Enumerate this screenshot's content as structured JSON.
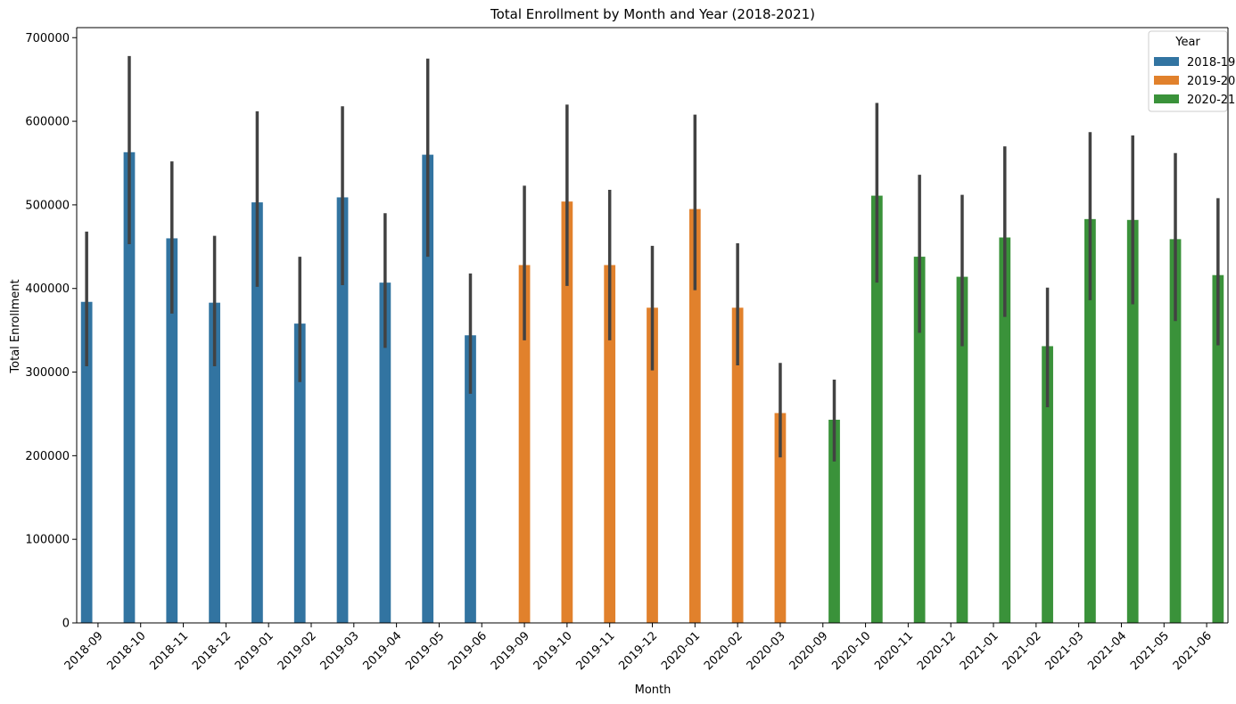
{
  "chart_data": {
    "type": "bar",
    "title": "Total Enrollment by Month and Year (2018-2021)",
    "xlabel": "Month",
    "ylabel": "Total Enrollment",
    "ylim": [
      0,
      712000
    ],
    "yticks": [
      0,
      100000,
      200000,
      300000,
      400000,
      500000,
      600000,
      700000
    ],
    "ytick_labels": [
      "0",
      "100000",
      "200000",
      "300000",
      "400000",
      "500000",
      "600000",
      "700000"
    ],
    "grid": false,
    "legend": {
      "title": "Year",
      "placement": "top-right"
    },
    "categories": [
      "2018-09",
      "2018-10",
      "2018-11",
      "2018-12",
      "2019-01",
      "2019-02",
      "2019-03",
      "2019-04",
      "2019-05",
      "2019-06",
      "2019-09",
      "2019-10",
      "2019-11",
      "2019-12",
      "2020-01",
      "2020-02",
      "2020-03",
      "2020-09",
      "2020-10",
      "2020-11",
      "2020-12",
      "2021-01",
      "2021-02",
      "2021-03",
      "2021-04",
      "2021-05",
      "2021-06"
    ],
    "series": [
      {
        "name": "2018-19",
        "color": "#3274a1",
        "values": [
          384000,
          563000,
          460000,
          383000,
          503000,
          358000,
          509000,
          407000,
          560000,
          344000,
          null,
          null,
          null,
          null,
          null,
          null,
          null,
          null,
          null,
          null,
          null,
          null,
          null,
          null,
          null,
          null,
          null
        ],
        "ci_low": [
          307000,
          453000,
          370000,
          307000,
          402000,
          288000,
          404000,
          329000,
          438000,
          274000,
          null,
          null,
          null,
          null,
          null,
          null,
          null,
          null,
          null,
          null,
          null,
          null,
          null,
          null,
          null,
          null,
          null
        ],
        "ci_high": [
          468000,
          678000,
          552000,
          463000,
          612000,
          438000,
          618000,
          490000,
          675000,
          418000,
          null,
          null,
          null,
          null,
          null,
          null,
          null,
          null,
          null,
          null,
          null,
          null,
          null,
          null,
          null,
          null,
          null
        ]
      },
      {
        "name": "2019-20",
        "color": "#e1812c",
        "values": [
          null,
          null,
          null,
          null,
          null,
          null,
          null,
          null,
          null,
          null,
          428000,
          504000,
          428000,
          377000,
          495000,
          377000,
          251000,
          null,
          null,
          null,
          null,
          null,
          null,
          null,
          null,
          null,
          null
        ],
        "ci_low": [
          null,
          null,
          null,
          null,
          null,
          null,
          null,
          null,
          null,
          null,
          338000,
          403000,
          338000,
          302000,
          398000,
          308000,
          198000,
          null,
          null,
          null,
          null,
          null,
          null,
          null,
          null,
          null,
          null
        ],
        "ci_high": [
          null,
          null,
          null,
          null,
          null,
          null,
          null,
          null,
          null,
          null,
          523000,
          620000,
          518000,
          451000,
          608000,
          454000,
          311000,
          null,
          null,
          null,
          null,
          null,
          null,
          null,
          null,
          null,
          null
        ]
      },
      {
        "name": "2020-21",
        "color": "#3a923a",
        "values": [
          null,
          null,
          null,
          null,
          null,
          null,
          null,
          null,
          null,
          null,
          null,
          null,
          null,
          null,
          null,
          null,
          null,
          243000,
          511000,
          438000,
          414000,
          461000,
          331000,
          483000,
          482000,
          459000,
          416000
        ],
        "ci_low": [
          null,
          null,
          null,
          null,
          null,
          null,
          null,
          null,
          null,
          null,
          null,
          null,
          null,
          null,
          null,
          null,
          null,
          193000,
          407000,
          347000,
          331000,
          366000,
          258000,
          386000,
          381000,
          361000,
          332000
        ],
        "ci_high": [
          null,
          null,
          null,
          null,
          null,
          null,
          null,
          null,
          null,
          null,
          null,
          null,
          null,
          null,
          null,
          null,
          null,
          291000,
          622000,
          536000,
          512000,
          570000,
          401000,
          587000,
          583000,
          562000,
          508000
        ]
      }
    ]
  }
}
